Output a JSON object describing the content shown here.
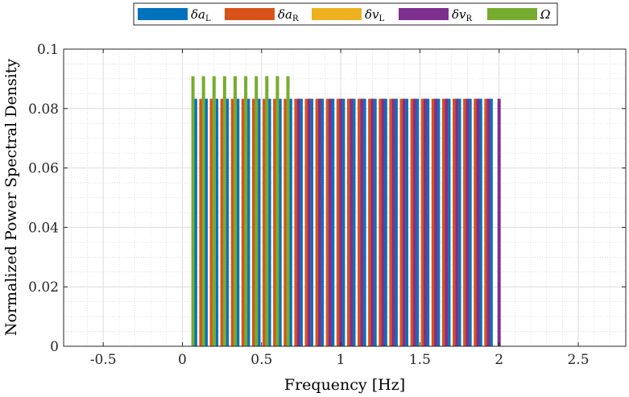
{
  "chart_data": {
    "type": "bar",
    "xlabel": "Frequency [Hz]",
    "ylabel": "Normalized Power Spectral Density",
    "xlim": [
      -0.75,
      2.8
    ],
    "ylim": [
      0,
      0.1
    ],
    "xticks": [
      -0.5,
      0,
      0.5,
      1,
      1.5,
      2,
      2.5
    ],
    "xtick_labels": [
      "-0.5",
      "0",
      "0.5",
      "1",
      "1.5",
      "2",
      "2.5"
    ],
    "yticks": [
      0,
      0.02,
      0.04,
      0.06,
      0.08,
      0.1
    ],
    "ytick_labels": [
      "0",
      "0.02",
      "0.04",
      "0.06",
      "0.08",
      "0.1"
    ],
    "grid": true,
    "minor_grid": true,
    "legend_position": "top-center",
    "group_spacing_hz": 0.0667,
    "series": [
      {
        "name": "δa_L",
        "label_main": "δa",
        "label_sub": "L",
        "color": "#0072BD",
        "x": [
          0.0833,
          0.15,
          0.2167,
          0.2833,
          0.35,
          0.4167,
          0.4833,
          0.55,
          0.6167,
          0.6833,
          0.75,
          0.8167,
          0.8833,
          0.95,
          1.0167,
          1.0833,
          1.15,
          1.2167,
          1.2833,
          1.35,
          1.4167,
          1.4833,
          1.55,
          1.6167,
          1.6833,
          1.75,
          1.8167,
          1.8833,
          1.95
        ],
        "y": [
          0.0833,
          0.0833,
          0.0833,
          0.0833,
          0.0833,
          0.0833,
          0.0833,
          0.0833,
          0.0833,
          0.0833,
          0.0833,
          0.0833,
          0.0833,
          0.0833,
          0.0833,
          0.0833,
          0.0833,
          0.0833,
          0.0833,
          0.0833,
          0.0833,
          0.0833,
          0.0833,
          0.0833,
          0.0833,
          0.0833,
          0.0833,
          0.0833,
          0.0833
        ]
      },
      {
        "name": "δa_R",
        "label_main": "δa",
        "label_sub": "R",
        "color": "#D95319",
        "x": [
          0.1167,
          0.1833,
          0.25,
          0.3167,
          0.3833,
          0.45,
          0.5167,
          0.5833,
          0.65,
          0.7167,
          0.7833,
          0.85,
          0.9167,
          0.9833,
          1.05,
          1.1167,
          1.1833,
          1.25,
          1.3167,
          1.3833,
          1.45,
          1.5167,
          1.5833,
          1.65,
          1.7167,
          1.7833,
          1.85,
          1.9167
        ],
        "y": [
          0.0833,
          0.0833,
          0.0833,
          0.0833,
          0.0833,
          0.0833,
          0.0833,
          0.0833,
          0.0833,
          0.0833,
          0.0833,
          0.0833,
          0.0833,
          0.0833,
          0.0833,
          0.0833,
          0.0833,
          0.0833,
          0.0833,
          0.0833,
          0.0833,
          0.0833,
          0.0833,
          0.0833,
          0.0833,
          0.0833,
          0.0833,
          0.0833
        ]
      },
      {
        "name": "δv_L",
        "label_main": "δv",
        "label_sub": "L",
        "color": "#EDB120",
        "x": [
          0.2,
          0.2667,
          0.3333,
          0.4,
          0.4667,
          0.5333,
          0.6,
          0.6667,
          0.7333,
          0.8,
          0.8667,
          0.9333,
          1.0,
          1.0667,
          1.1333,
          1.2,
          1.2667,
          1.3333,
          1.4,
          1.4667,
          1.5333,
          1.6,
          1.6667,
          1.7333,
          1.8,
          1.8667,
          1.9333
        ],
        "y": [
          0.0833,
          0.0833,
          0.0833,
          0.0833,
          0.0833,
          0.0833,
          0.0833,
          0.0833,
          0.0833,
          0.0833,
          0.0833,
          0.0833,
          0.0833,
          0.0833,
          0.0833,
          0.0833,
          0.0833,
          0.0833,
          0.0833,
          0.0833,
          0.0833,
          0.0833,
          0.0833,
          0.0833,
          0.0833,
          0.0833,
          0.0833
        ]
      },
      {
        "name": "δv_R",
        "label_main": "δv",
        "label_sub": "R",
        "color": "#7E2F8E",
        "x": [
          0.2667,
          0.3333,
          0.4,
          0.4667,
          0.5333,
          0.6,
          0.6667,
          0.7333,
          0.8,
          0.8667,
          0.9333,
          1.0,
          1.0667,
          1.1333,
          1.2,
          1.2667,
          1.3333,
          1.4,
          1.4667,
          1.5333,
          1.6,
          1.6667,
          1.7333,
          1.8,
          1.8667,
          1.9333,
          2.0
        ],
        "y": [
          0.0833,
          0.0833,
          0.0833,
          0.0833,
          0.0833,
          0.0833,
          0.0833,
          0.0833,
          0.0833,
          0.0833,
          0.0833,
          0.0833,
          0.0833,
          0.0833,
          0.0833,
          0.0833,
          0.0833,
          0.0833,
          0.0833,
          0.0833,
          0.0833,
          0.0833,
          0.0833,
          0.0833,
          0.0833,
          0.0833,
          0.0833
        ]
      },
      {
        "name": "Ω",
        "label_main": "Ω",
        "label_sub": "",
        "color": "#77AC30",
        "x": [
          0.0667,
          0.1333,
          0.2,
          0.2667,
          0.3333,
          0.4,
          0.4667,
          0.5333,
          0.6,
          0.6667
        ],
        "y": [
          0.0909,
          0.0909,
          0.0909,
          0.0909,
          0.0909,
          0.0909,
          0.0909,
          0.0909,
          0.0909,
          0.0909
        ]
      }
    ]
  }
}
